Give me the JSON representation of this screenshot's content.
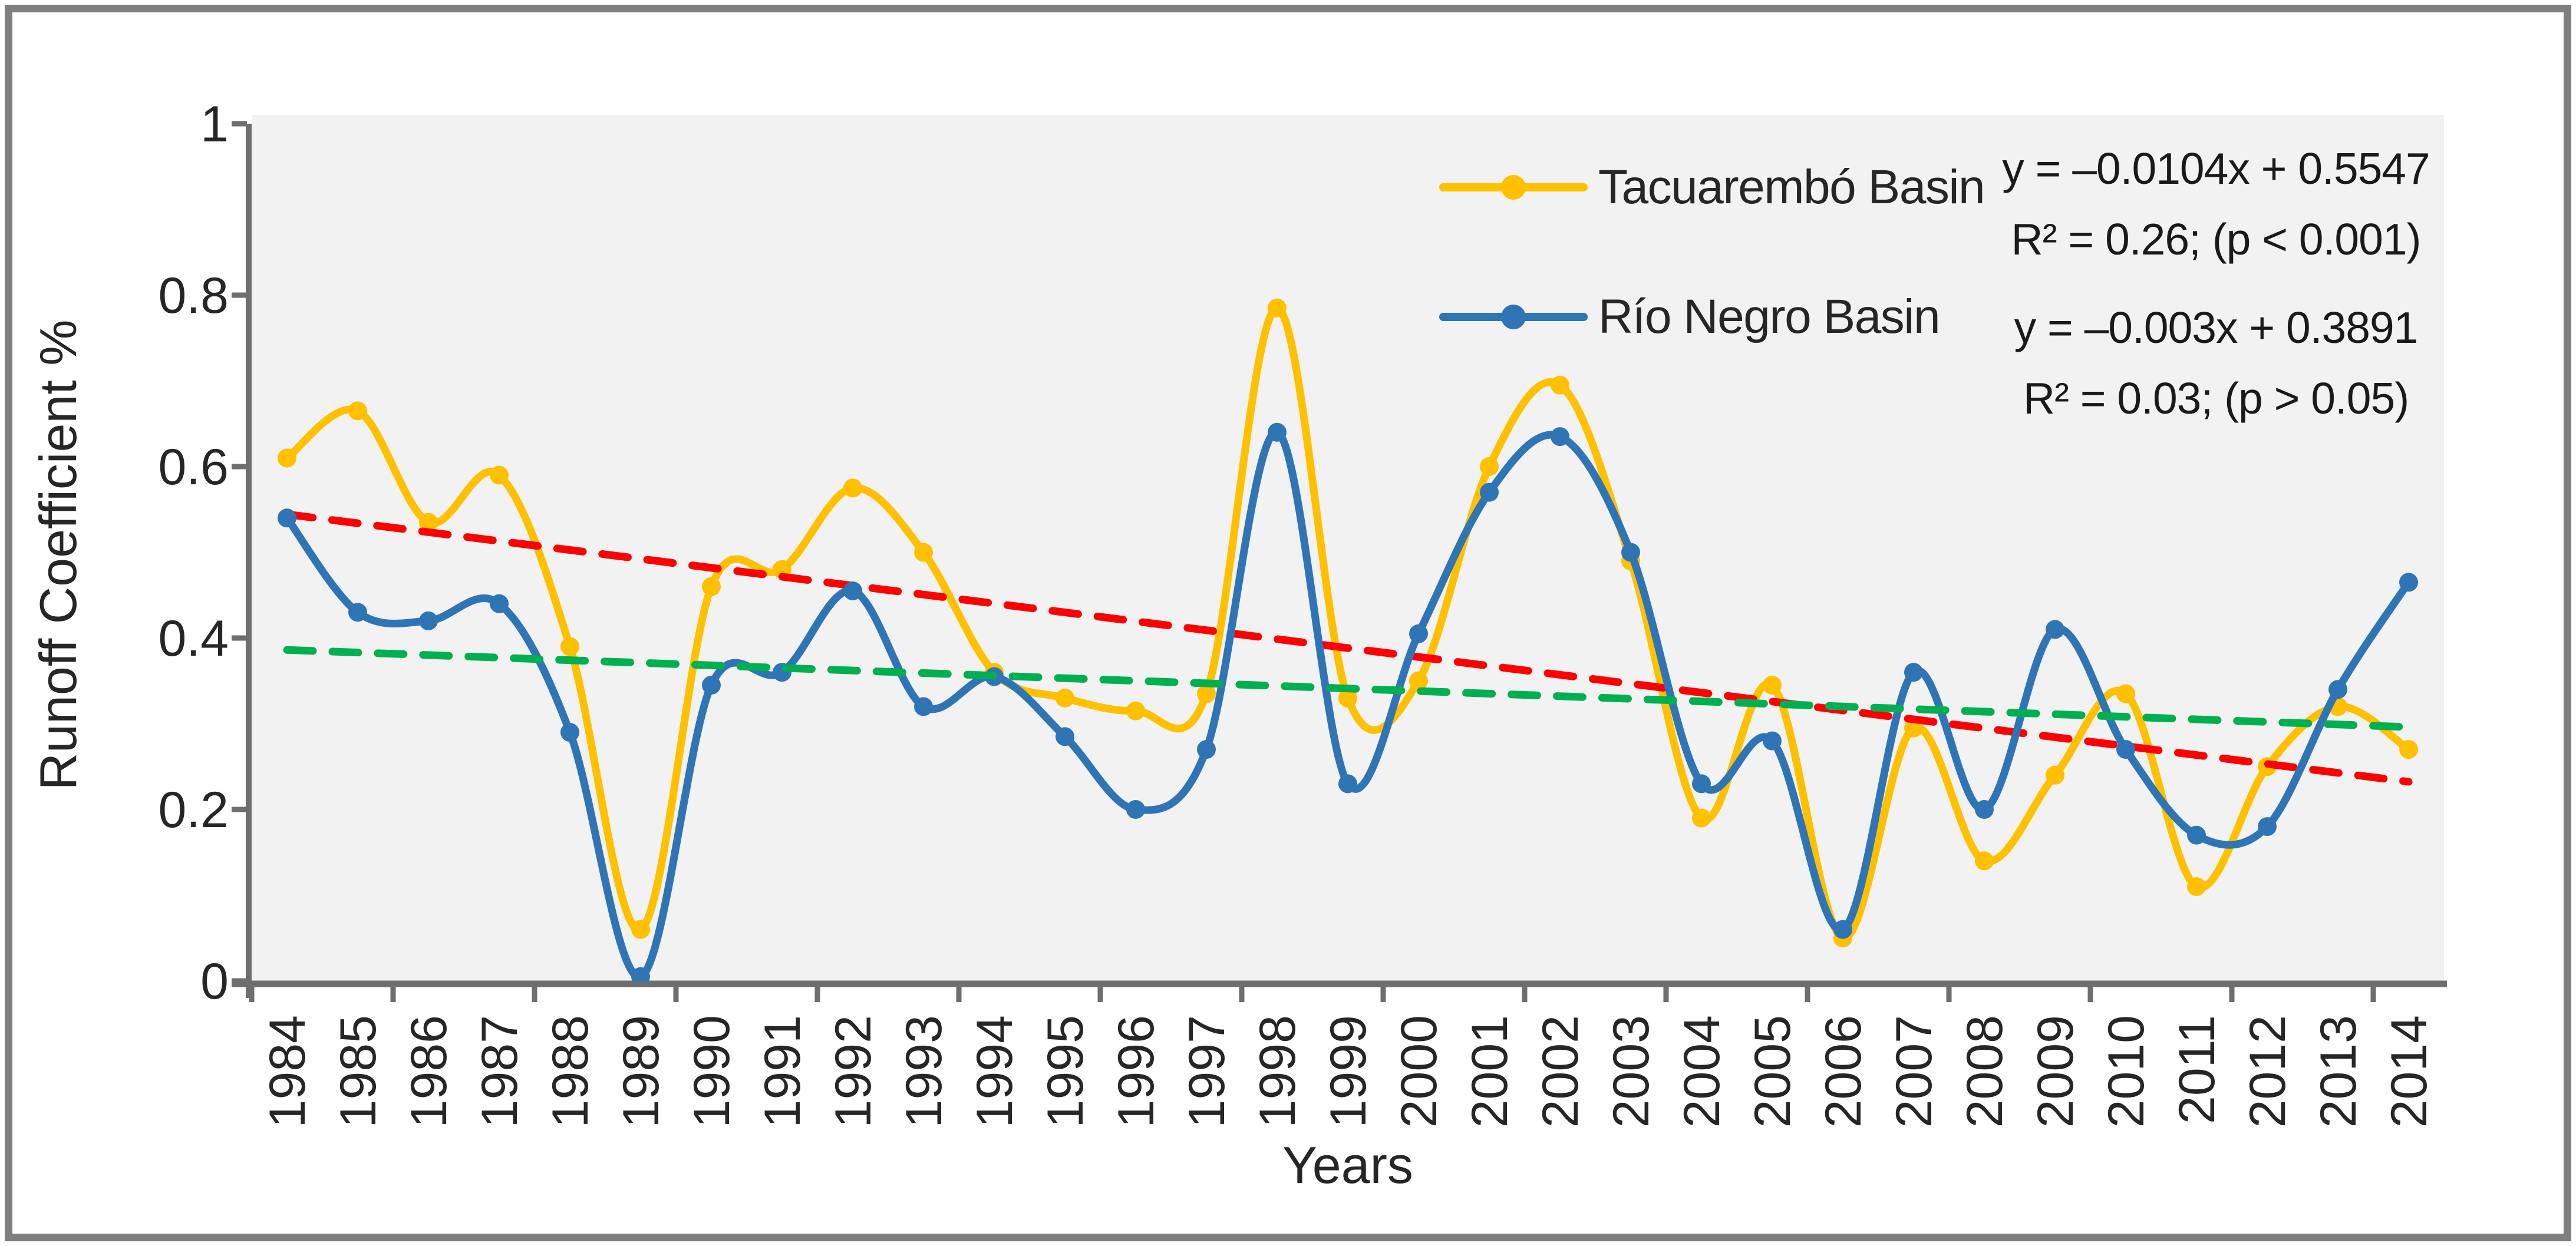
{
  "chart_data": {
    "type": "line",
    "title": "",
    "xlabel": "Years",
    "ylabel": "Runoff Coefficient %",
    "ylim": [
      0,
      1
    ],
    "yticks": [
      0,
      0.2,
      0.4,
      0.6,
      0.8,
      1
    ],
    "ytick_labels": [
      "0",
      "0.2",
      "0.4",
      "0.6",
      "0.8",
      "1"
    ],
    "categories": [
      "1984",
      "1985",
      "1986",
      "1987",
      "1988",
      "1989",
      "1990",
      "1991",
      "1992",
      "1993",
      "1994",
      "1995",
      "1996",
      "1997",
      "1998",
      "1999",
      "2000",
      "2001",
      "2002",
      "2003",
      "2004",
      "2005",
      "2006",
      "2007",
      "2008",
      "2009",
      "2010",
      "2011",
      "2012",
      "2013",
      "2014"
    ],
    "grid": false,
    "smooth_lines": true,
    "legend_position": "inside-top-right",
    "plot_background": "#F2F2F2",
    "series": [
      {
        "name": "Tacuarembó Basin",
        "color": "#FFC000",
        "marker": "circle",
        "values": [
          0.61,
          0.665,
          0.535,
          0.59,
          0.39,
          0.06,
          0.46,
          0.48,
          0.575,
          0.5,
          0.36,
          0.33,
          0.315,
          0.335,
          0.785,
          0.33,
          0.35,
          0.6,
          0.695,
          0.49,
          0.19,
          0.345,
          0.05,
          0.295,
          0.14,
          0.24,
          0.335,
          0.11,
          0.25,
          0.32,
          0.27
        ]
      },
      {
        "name": "Río Negro Basin",
        "color": "#2F75B5",
        "marker": "circle",
        "values": [
          0.54,
          0.43,
          0.42,
          0.44,
          0.29,
          0.005,
          0.345,
          0.36,
          0.455,
          0.32,
          0.355,
          0.285,
          0.2,
          0.27,
          0.64,
          0.23,
          0.405,
          0.57,
          0.635,
          0.5,
          0.23,
          0.28,
          0.06,
          0.36,
          0.2,
          0.41,
          0.27,
          0.17,
          0.18,
          0.34,
          0.465
        ]
      }
    ],
    "trendlines": [
      {
        "series": "Tacuarembó Basin",
        "color": "#FF0000",
        "style": "dashed",
        "slope": -0.0104,
        "intercept": 0.5547,
        "equation": "y = –0.0104x + 0.5547",
        "r2_label": "R² = 0.26; (p < 0.001)"
      },
      {
        "series": "Río Negro Basin",
        "color": "#00B050",
        "style": "dashed",
        "slope": -0.003,
        "intercept": 0.3891,
        "equation": "y = –0.003x + 0.3891",
        "r2_label": "R² = 0.03; (p > 0.05)"
      }
    ]
  },
  "colors": {
    "axis_line": "#6E6E6E",
    "tick_text": "#262626",
    "frame_border": "#7F7F7F",
    "background": "#FFFFFF"
  }
}
